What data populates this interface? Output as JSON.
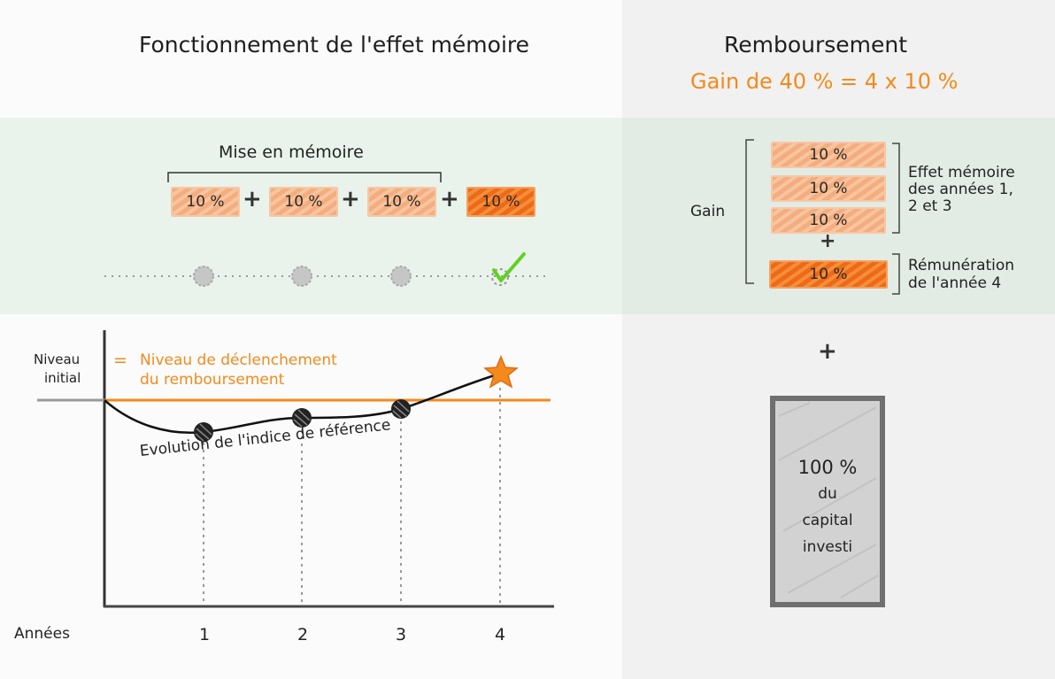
{
  "left": {
    "title": "Fonctionnement de l'effet mémoire",
    "memory_label": "Mise en mémoire",
    "chips": [
      "10 %",
      "10 %",
      "10 %",
      "10 %"
    ],
    "plus": "+",
    "level_label_1": "Niveau",
    "level_label_2": "initial",
    "trigger_eq": "=",
    "trigger_1": "Niveau de déclenchement",
    "trigger_2": "du remboursement",
    "curve_label": "Evolution de l'indice de référence",
    "years_label": "Années",
    "years": [
      "1",
      "2",
      "3",
      "4"
    ]
  },
  "right": {
    "title": "Remboursement",
    "gain_formula": "Gain de 40 % = 4 x 10 %",
    "gain_label": "Gain",
    "chips": [
      "10 %",
      "10 %",
      "10 %",
      "10 %"
    ],
    "plus": "+",
    "memory_effect_1": "Effet mémoire",
    "memory_effect_2": "des années 1,",
    "memory_effect_3": "2 et 3",
    "remuneration_1": "Rémunération",
    "remuneration_2": "de l'année 4",
    "big_plus": "+",
    "capital_1": "100 %",
    "capital_2": "du",
    "capital_3": "capital",
    "capital_4": "investi"
  },
  "colors": {
    "orange": "#f28a1c",
    "light_chip": "#f5b68a",
    "dark_chip": "#ef6c1a",
    "check": "#5ed21f",
    "band": "#e9f3ec"
  }
}
